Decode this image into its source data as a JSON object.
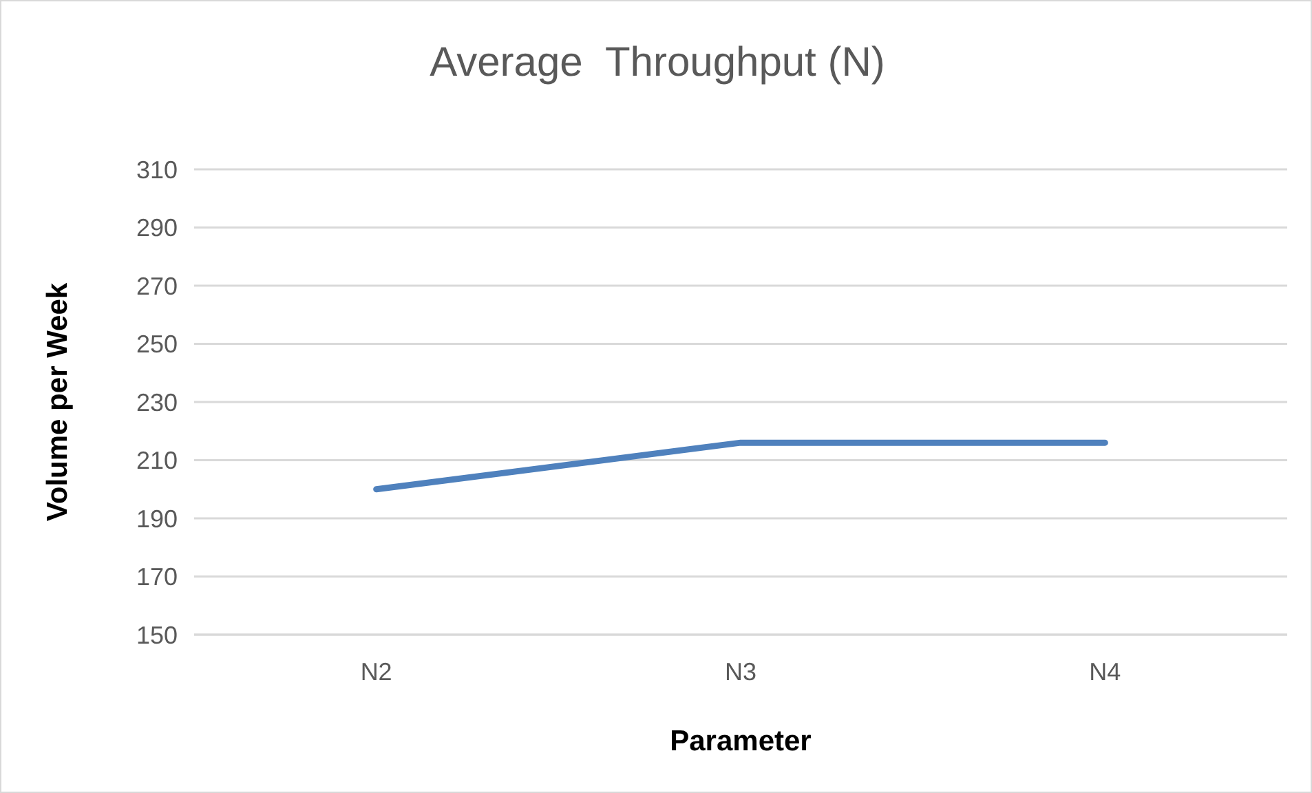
{
  "chart_data": {
    "type": "line",
    "title": "Average  Throughput (N)",
    "xlabel": "Parameter",
    "ylabel": "Volume per  Week",
    "categories": [
      "N2",
      "N3",
      "N4"
    ],
    "series": [
      {
        "color": "#4f81bd",
        "values": [
          200,
          216,
          216
        ]
      }
    ],
    "ylim": [
      150,
      310
    ],
    "yticks": [
      150,
      170,
      190,
      210,
      230,
      250,
      270,
      290,
      310
    ],
    "grid": "y",
    "marker": "none"
  }
}
